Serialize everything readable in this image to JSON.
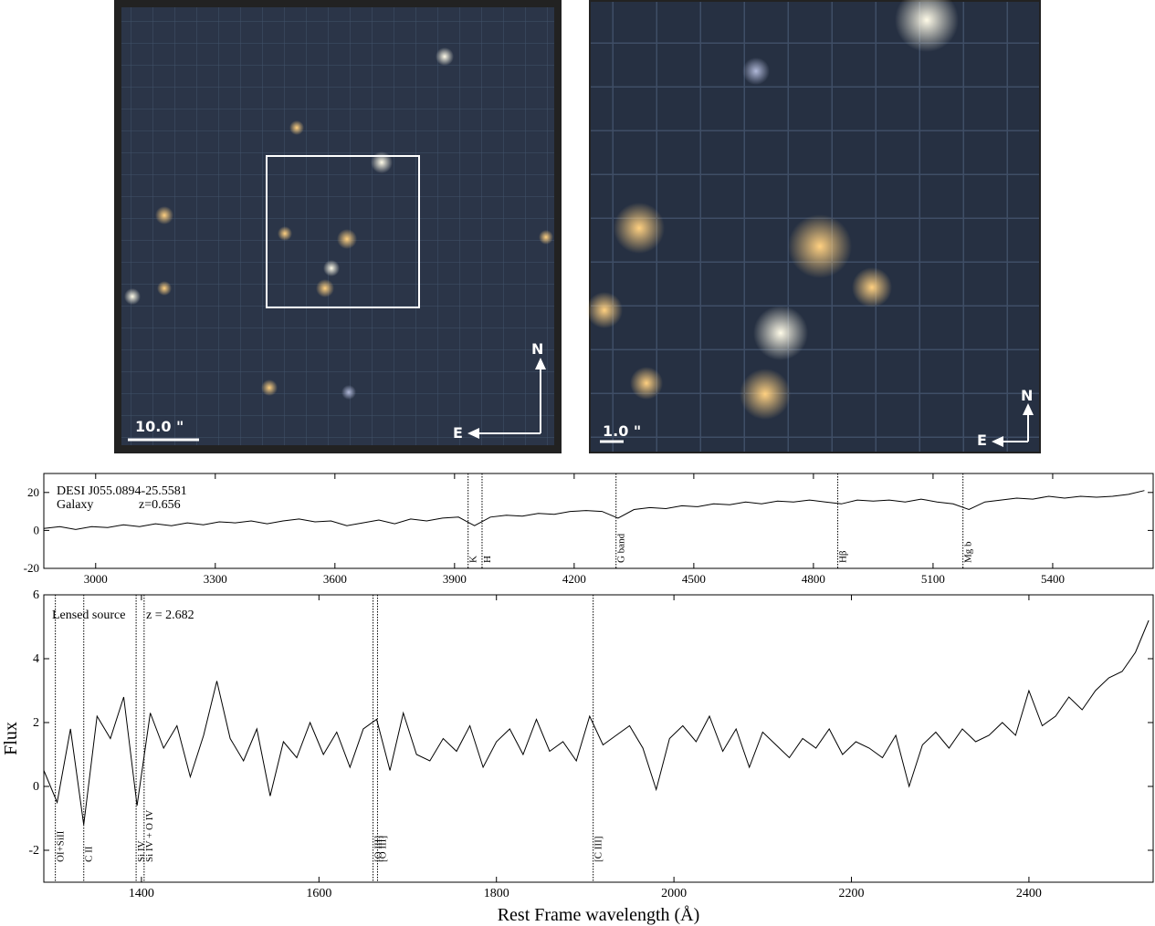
{
  "images": [
    {
      "scale_label": "10.0 \"",
      "north": "N",
      "east": "E"
    },
    {
      "scale_label": "1.0 \"",
      "north": "N",
      "east": "E"
    }
  ],
  "chart_data": [
    {
      "type": "line",
      "annotations": [
        "DESI J055.0894-25.5581",
        "Galaxy",
        "z=0.656"
      ],
      "x": [
        2870,
        2910,
        2950,
        2990,
        3030,
        3070,
        3110,
        3150,
        3190,
        3230,
        3270,
        3310,
        3350,
        3390,
        3430,
        3470,
        3510,
        3550,
        3590,
        3630,
        3670,
        3710,
        3750,
        3790,
        3830,
        3870,
        3910,
        3950,
        3990,
        4030,
        4070,
        4110,
        4150,
        4190,
        4230,
        4270,
        4310,
        4350,
        4390,
        4430,
        4470,
        4510,
        4550,
        4590,
        4630,
        4670,
        4710,
        4750,
        4790,
        4830,
        4870,
        4910,
        4950,
        4990,
        5030,
        5070,
        5110,
        5150,
        5190,
        5230,
        5270,
        5310,
        5350,
        5390,
        5430,
        5470,
        5510,
        5550,
        5590,
        5630
      ],
      "series": [
        {
          "color": "#000000",
          "values": [
            1,
            2,
            0.5,
            2,
            1.5,
            3,
            2,
            3.5,
            2.5,
            4,
            3,
            4.5,
            4,
            5,
            3.5,
            5,
            6,
            4.5,
            5,
            2.5,
            4,
            5.5,
            3.5,
            6,
            5,
            6.5,
            7,
            2.5,
            7,
            8,
            7.5,
            9,
            8.5,
            10,
            10.5,
            10,
            6.5,
            11,
            12,
            11.5,
            13,
            12.5,
            14,
            13.5,
            15,
            14,
            15.5,
            15,
            16,
            15,
            14,
            16,
            15.5,
            16,
            15,
            16.5,
            15,
            14,
            11,
            15,
            16,
            17,
            16.5,
            18,
            17,
            18,
            17.5,
            18,
            19,
            21
          ]
        }
      ],
      "xlim": [
        2870,
        5652
      ],
      "ylim": [
        -20,
        30
      ],
      "xticks": [
        3000,
        3300,
        3600,
        3900,
        4200,
        4500,
        4800,
        5100,
        5400
      ],
      "yticks": [
        -20,
        0,
        20
      ],
      "lines": [
        {
          "x": 3934,
          "label": "K"
        },
        {
          "x": 3969,
          "label": "H"
        },
        {
          "x": 4305,
          "label": "G band"
        },
        {
          "x": 4861,
          "label": "Hβ"
        },
        {
          "x": 5175,
          "label": "Mg b"
        }
      ]
    },
    {
      "type": "line",
      "annotations": [
        "Lensed source",
        "z = 2.682"
      ],
      "xlabel": "Rest Frame wavelength (Å)",
      "ylabel": "Flux",
      "x": [
        1290,
        1305,
        1320,
        1335,
        1350,
        1365,
        1380,
        1395,
        1410,
        1425,
        1440,
        1455,
        1470,
        1485,
        1500,
        1515,
        1530,
        1545,
        1560,
        1575,
        1590,
        1605,
        1620,
        1635,
        1650,
        1665,
        1680,
        1695,
        1710,
        1725,
        1740,
        1755,
        1770,
        1785,
        1800,
        1815,
        1830,
        1845,
        1860,
        1875,
        1890,
        1905,
        1920,
        1935,
        1950,
        1965,
        1980,
        1995,
        2010,
        2025,
        2040,
        2055,
        2070,
        2085,
        2100,
        2115,
        2130,
        2145,
        2160,
        2175,
        2190,
        2205,
        2220,
        2235,
        2250,
        2265,
        2280,
        2295,
        2310,
        2325,
        2340,
        2355,
        2370,
        2385,
        2400,
        2415,
        2430,
        2445,
        2460,
        2475,
        2490,
        2505,
        2520,
        2535
      ],
      "series": [
        {
          "color": "#000000",
          "values": [
            0.5,
            -0.5,
            1.8,
            -1.2,
            2.2,
            1.5,
            2.8,
            -0.6,
            2.3,
            1.2,
            1.9,
            0.3,
            1.6,
            3.3,
            1.5,
            0.8,
            1.8,
            -0.3,
            1.4,
            0.9,
            2.0,
            1.0,
            1.7,
            0.6,
            1.8,
            2.1,
            0.5,
            2.3,
            1.0,
            0.8,
            1.5,
            1.1,
            1.9,
            0.6,
            1.4,
            1.8,
            1.0,
            2.1,
            1.1,
            1.4,
            0.8,
            2.2,
            1.3,
            1.6,
            1.9,
            1.2,
            -0.1,
            1.5,
            1.9,
            1.4,
            2.2,
            1.1,
            1.8,
            0.6,
            1.7,
            1.3,
            0.9,
            1.5,
            1.2,
            1.8,
            1.0,
            1.4,
            1.2,
            0.9,
            1.6,
            0.0,
            1.3,
            1.7,
            1.2,
            1.8,
            1.4,
            1.6,
            2.0,
            1.6,
            3.0,
            1.9,
            2.2,
            2.8,
            2.4,
            3.0,
            3.4,
            3.6,
            4.2,
            5.2
          ]
        }
      ],
      "xlim": [
        1290,
        2540
      ],
      "ylim": [
        -3,
        6
      ],
      "xticks": [
        1400,
        1600,
        1800,
        2000,
        2200,
        2400
      ],
      "yticks": [
        -2,
        0,
        2,
        4,
        6
      ],
      "lines": [
        {
          "x": 1303,
          "label": "OI+SiII"
        },
        {
          "x": 1335,
          "label": "C II"
        },
        {
          "x": 1394,
          "label": "Si IV"
        },
        {
          "x": 1403,
          "label": "Si IV + O IV"
        },
        {
          "x": 1661,
          "label": "[O III]"
        },
        {
          "x": 1666,
          "label": "[O III]"
        },
        {
          "x": 1909,
          "label": "[C III]"
        }
      ]
    }
  ]
}
